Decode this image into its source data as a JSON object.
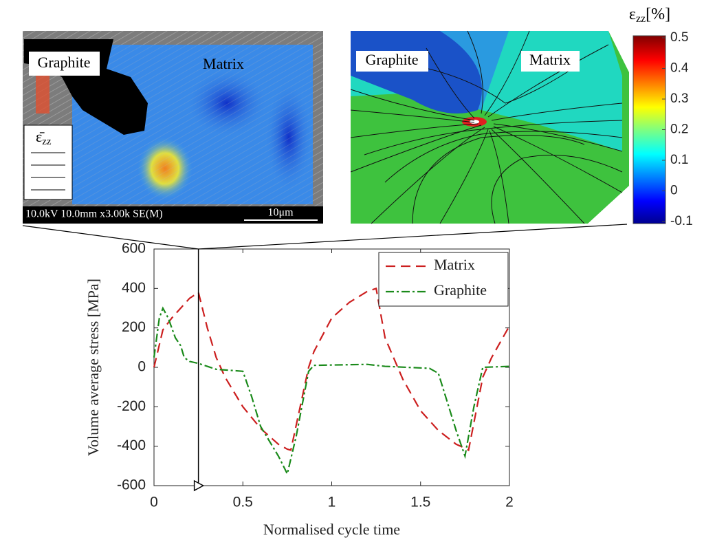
{
  "chart_data": {
    "type": "line",
    "x_label": "Normalised cycle time",
    "y_label": "Volume average stress [MPa]",
    "xlim": [
      0,
      2
    ],
    "ylim": [
      -600,
      600
    ],
    "xticks": [
      0,
      0.5,
      1,
      1.5,
      2
    ],
    "yticks": [
      -600,
      -400,
      -200,
      0,
      200,
      400,
      600
    ],
    "legend": "upper right",
    "annotation_x": 0.25,
    "series": [
      {
        "name": "Matrix",
        "color": "#cc1f1f",
        "dash": "14,8",
        "x": [
          0,
          0.05,
          0.1,
          0.15,
          0.2,
          0.25,
          0.3,
          0.35,
          0.4,
          0.5,
          0.6,
          0.7,
          0.75,
          0.77,
          0.87,
          0.9,
          1.0,
          1.1,
          1.2,
          1.25,
          1.3,
          1.4,
          1.5,
          1.6,
          1.7,
          1.75,
          1.77,
          1.85,
          1.9,
          2.0
        ],
        "values": [
          0,
          190,
          250,
          300,
          350,
          380,
          200,
          50,
          -50,
          -200,
          -310,
          -390,
          -415,
          -420,
          0,
          80,
          250,
          330,
          385,
          400,
          150,
          -60,
          -220,
          -320,
          -390,
          -410,
          -420,
          -50,
          50,
          210
        ]
      },
      {
        "name": "Graphite",
        "color": "#1a8a1a",
        "dash": "12,4,3,4",
        "x": [
          0,
          0.03,
          0.05,
          0.08,
          0.12,
          0.15,
          0.17,
          0.2,
          0.25,
          0.3,
          0.35,
          0.5,
          0.55,
          0.6,
          0.7,
          0.75,
          0.8,
          0.87,
          0.9,
          1.2,
          1.3,
          1.55,
          1.6,
          1.7,
          1.75,
          1.8,
          1.85,
          2.0
        ],
        "values": [
          50,
          250,
          300,
          250,
          150,
          110,
          50,
          30,
          20,
          5,
          -10,
          -20,
          -150,
          -300,
          -450,
          -540,
          -350,
          -20,
          10,
          15,
          5,
          -5,
          -30,
          -320,
          -450,
          -200,
          0,
          5
        ]
      }
    ]
  },
  "images": {
    "sem": {
      "graphite_label": "Graphite",
      "matrix_label": "Matrix",
      "strain_symbol": "ε̄",
      "strain_sub": "zz",
      "info": "10.0kV 10.0mm x3.00k SE(M)",
      "scale_bar": "10μm"
    },
    "fe": {
      "graphite_label": "Graphite",
      "matrix_label": "Matrix"
    }
  },
  "colorbar": {
    "label": "ε",
    "label_sub": "zz",
    "label_suffix": "[%]",
    "lim": [
      -0.1,
      0.5
    ],
    "ticks": [
      -0.1,
      0,
      0.1,
      0.2,
      0.3,
      0.4,
      0.5
    ]
  }
}
